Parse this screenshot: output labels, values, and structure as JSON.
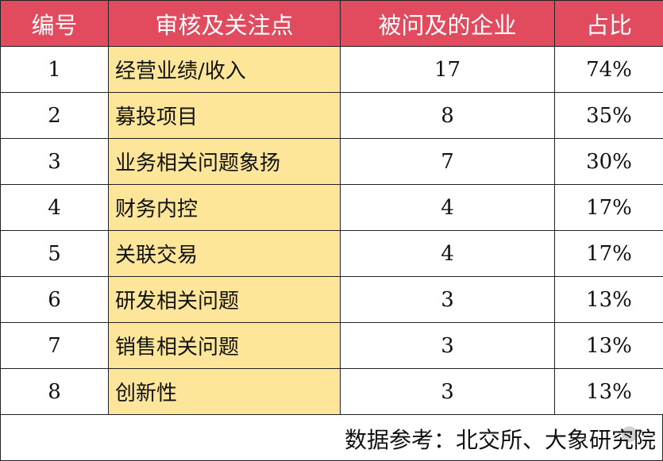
{
  "table": {
    "headers": [
      "编号",
      "审核及关注点",
      "被问及的企业",
      "占比"
    ],
    "rows": [
      [
        "1",
        "经营业绩/收入",
        "17",
        "74%"
      ],
      [
        "2",
        "募投项目",
        "8",
        "35%"
      ],
      [
        "3",
        "业务相关问题象扬",
        "7",
        "30%"
      ],
      [
        "4",
        "财务内控",
        "4",
        "17%"
      ],
      [
        "5",
        "关联交易",
        "4",
        "17%"
      ],
      [
        "6",
        "研发相关问题",
        "3",
        "13%"
      ],
      [
        "7",
        "销售相关问题",
        "3",
        "13%"
      ],
      [
        "8",
        "创新性",
        "3",
        "13%"
      ]
    ]
  },
  "footer": {
    "source": "数据参考：北交所、大象研究院"
  },
  "colors": {
    "header_bg": "#e24a5e",
    "highlight_bg": "#fde59a"
  }
}
